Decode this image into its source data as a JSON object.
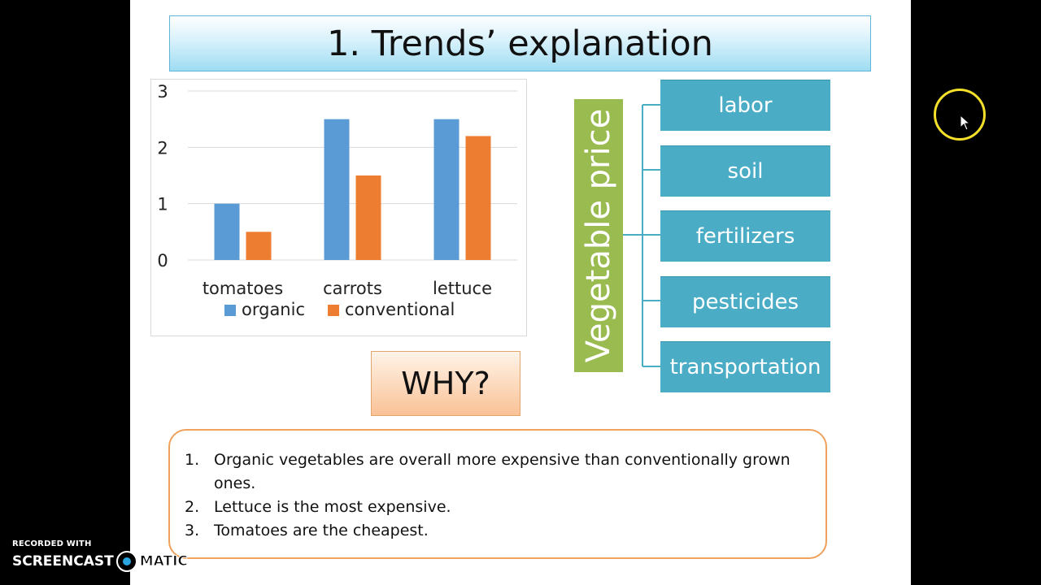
{
  "slide": {
    "title": "1. Trends’ explanation",
    "why_label": "WHY?",
    "diagram": {
      "root_label": "Vegetable price",
      "factors": [
        "labor",
        "soil",
        "fertilizers",
        "pesticides",
        "transportation"
      ],
      "root_color": "#99bb4f",
      "factor_color": "#4bacc6"
    },
    "notes": [
      {
        "num": "1.",
        "text": "Organic vegetables are overall more expensive than conventionally grown ones."
      },
      {
        "num": "2.",
        "text": "Lettuce is the most expensive."
      },
      {
        "num": "3.",
        "text": "Tomatoes are the cheapest."
      }
    ]
  },
  "chart_data": {
    "type": "bar",
    "categories": [
      "tomatoes",
      "carrots",
      "lettuce"
    ],
    "series": [
      {
        "name": "organic",
        "values": [
          1,
          2.5,
          2.5
        ],
        "color": "#5b9bd5"
      },
      {
        "name": "conventional",
        "values": [
          0.5,
          1.5,
          2.2
        ],
        "color": "#ed7d31"
      }
    ],
    "title": "",
    "xlabel": "",
    "ylabel": "",
    "ylim": [
      0,
      3
    ],
    "yticks": [
      0,
      1,
      2,
      3
    ],
    "grid": true,
    "legend": "bottom"
  },
  "recorder": {
    "top": "RECORDED WITH",
    "brand_left": "SCREENCAST",
    "brand_right": "MATIC"
  }
}
